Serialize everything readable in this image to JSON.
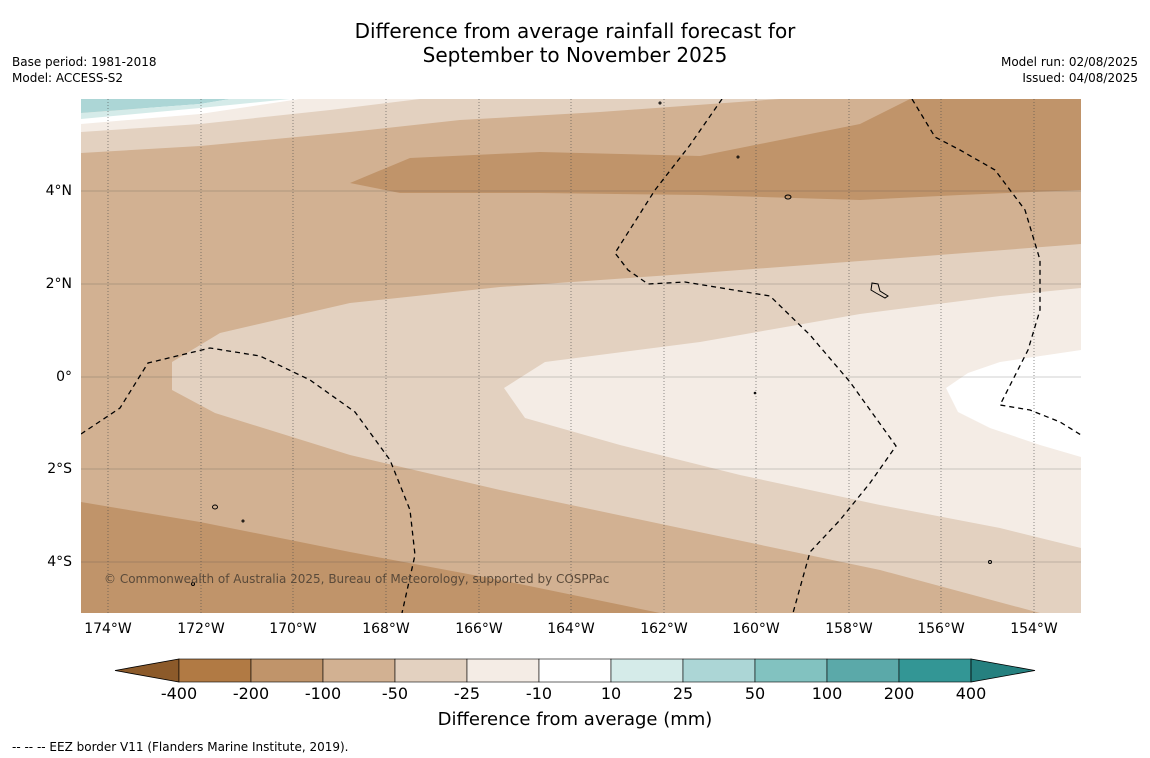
{
  "title_line1": "Difference from average rainfall forecast for",
  "title_line2": "September to November 2025",
  "meta_left": {
    "base_period": "Base period: 1981-2018",
    "model": "Model: ACCESS-S2"
  },
  "meta_right": {
    "model_run": "Model run: 02/08/2025",
    "issued": "Issued: 04/08/2025"
  },
  "copyright": "© Commonwealth of Australia 2025, Bureau of Meteorology, supported by COSPPac",
  "y_ticks": [
    "4°N",
    "2°N",
    "0°",
    "2°S",
    "4°S"
  ],
  "x_ticks": [
    "174°W",
    "172°W",
    "170°W",
    "168°W",
    "166°W",
    "164°W",
    "162°W",
    "160°W",
    "158°W",
    "156°W",
    "154°W"
  ],
  "colorbar": {
    "title": "Difference from average (mm)",
    "labels": [
      "-400",
      "-200",
      "-100",
      "-50",
      "-25",
      "-10",
      "10",
      "25",
      "50",
      "100",
      "200",
      "400"
    ],
    "colors": [
      "#8c5a2a",
      "#b17a44",
      "#c0946a",
      "#d2b192",
      "#e3d1c0",
      "#f4ece5",
      "#ffffff",
      "#d5ebe9",
      "#acd6d6",
      "#82c2c0",
      "#5ba9a9",
      "#339695",
      "#25807f"
    ]
  },
  "footnote": "--  --  -- EEZ border V11 (Flanders Marine Institute, 2019)."
}
